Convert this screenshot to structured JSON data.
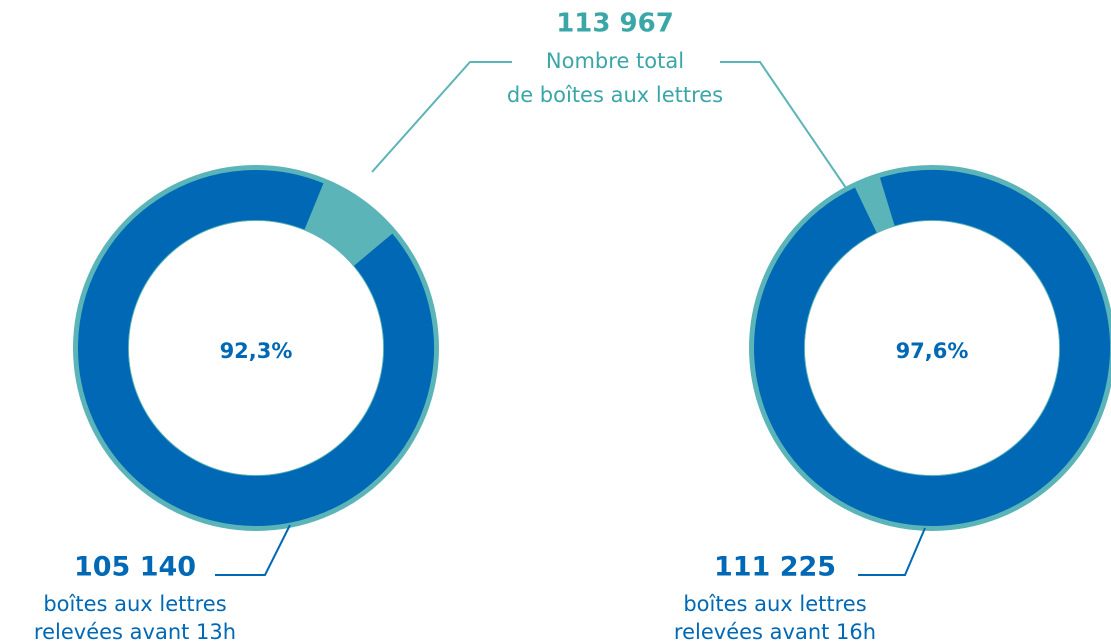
{
  "chart_data": [
    {
      "type": "donut",
      "values": [
        92.3
      ],
      "value_labels": [
        "92,3%"
      ],
      "color": "#0068b4",
      "rest_color": "#5bb5b8",
      "count": {
        "value": 105140,
        "label": "105 140"
      },
      "caption": [
        "boîtes aux lettres",
        "relevées avant 13h"
      ]
    },
    {
      "type": "donut",
      "values": [
        97.6
      ],
      "value_labels": [
        "97,6%"
      ],
      "color": "#0068b4",
      "rest_color": "#5bb5b8",
      "count": {
        "value": 111225,
        "label": "111 225"
      },
      "caption": [
        "boîtes aux lettres",
        "relevées avant 16h"
      ]
    }
  ],
  "total": {
    "value": 113967,
    "label": "113 967",
    "text": [
      "Nombre total",
      "de boîtes aux lettres"
    ]
  }
}
